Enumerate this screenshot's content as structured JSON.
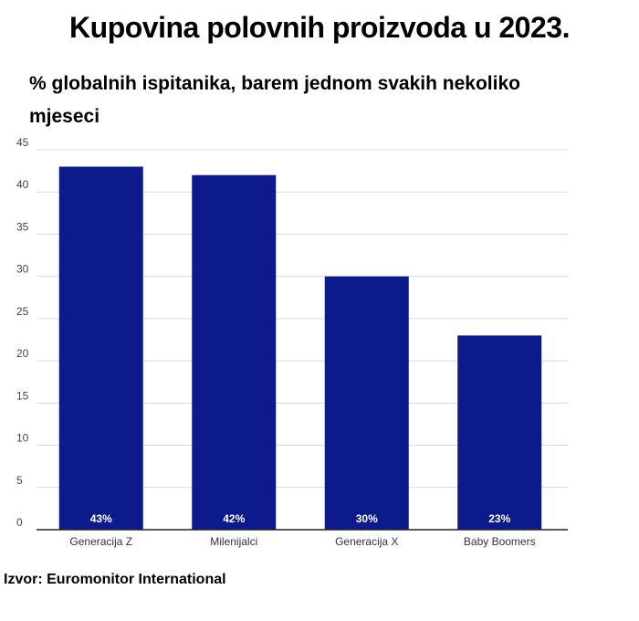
{
  "chart_data": {
    "type": "bar",
    "title": "Kupovina polovnih proizvoda u 2023.",
    "subtitle": "% globalnih ispitanika, barem jednom svakih nekoliko mjeseci",
    "categories": [
      "Generacija Z",
      "Milenijalci",
      "Generacija X",
      "Baby Boomers"
    ],
    "values": [
      43,
      42,
      30,
      23
    ],
    "data_labels": [
      "43%",
      "42%",
      "30%",
      "23%"
    ],
    "yticks": [
      0,
      5,
      10,
      15,
      20,
      25,
      30,
      35,
      40,
      45
    ],
    "ylim": [
      0,
      45
    ],
    "grid": true,
    "bar_color": "#0c1a8c",
    "source": "Izvor: Euromonitor International"
  }
}
